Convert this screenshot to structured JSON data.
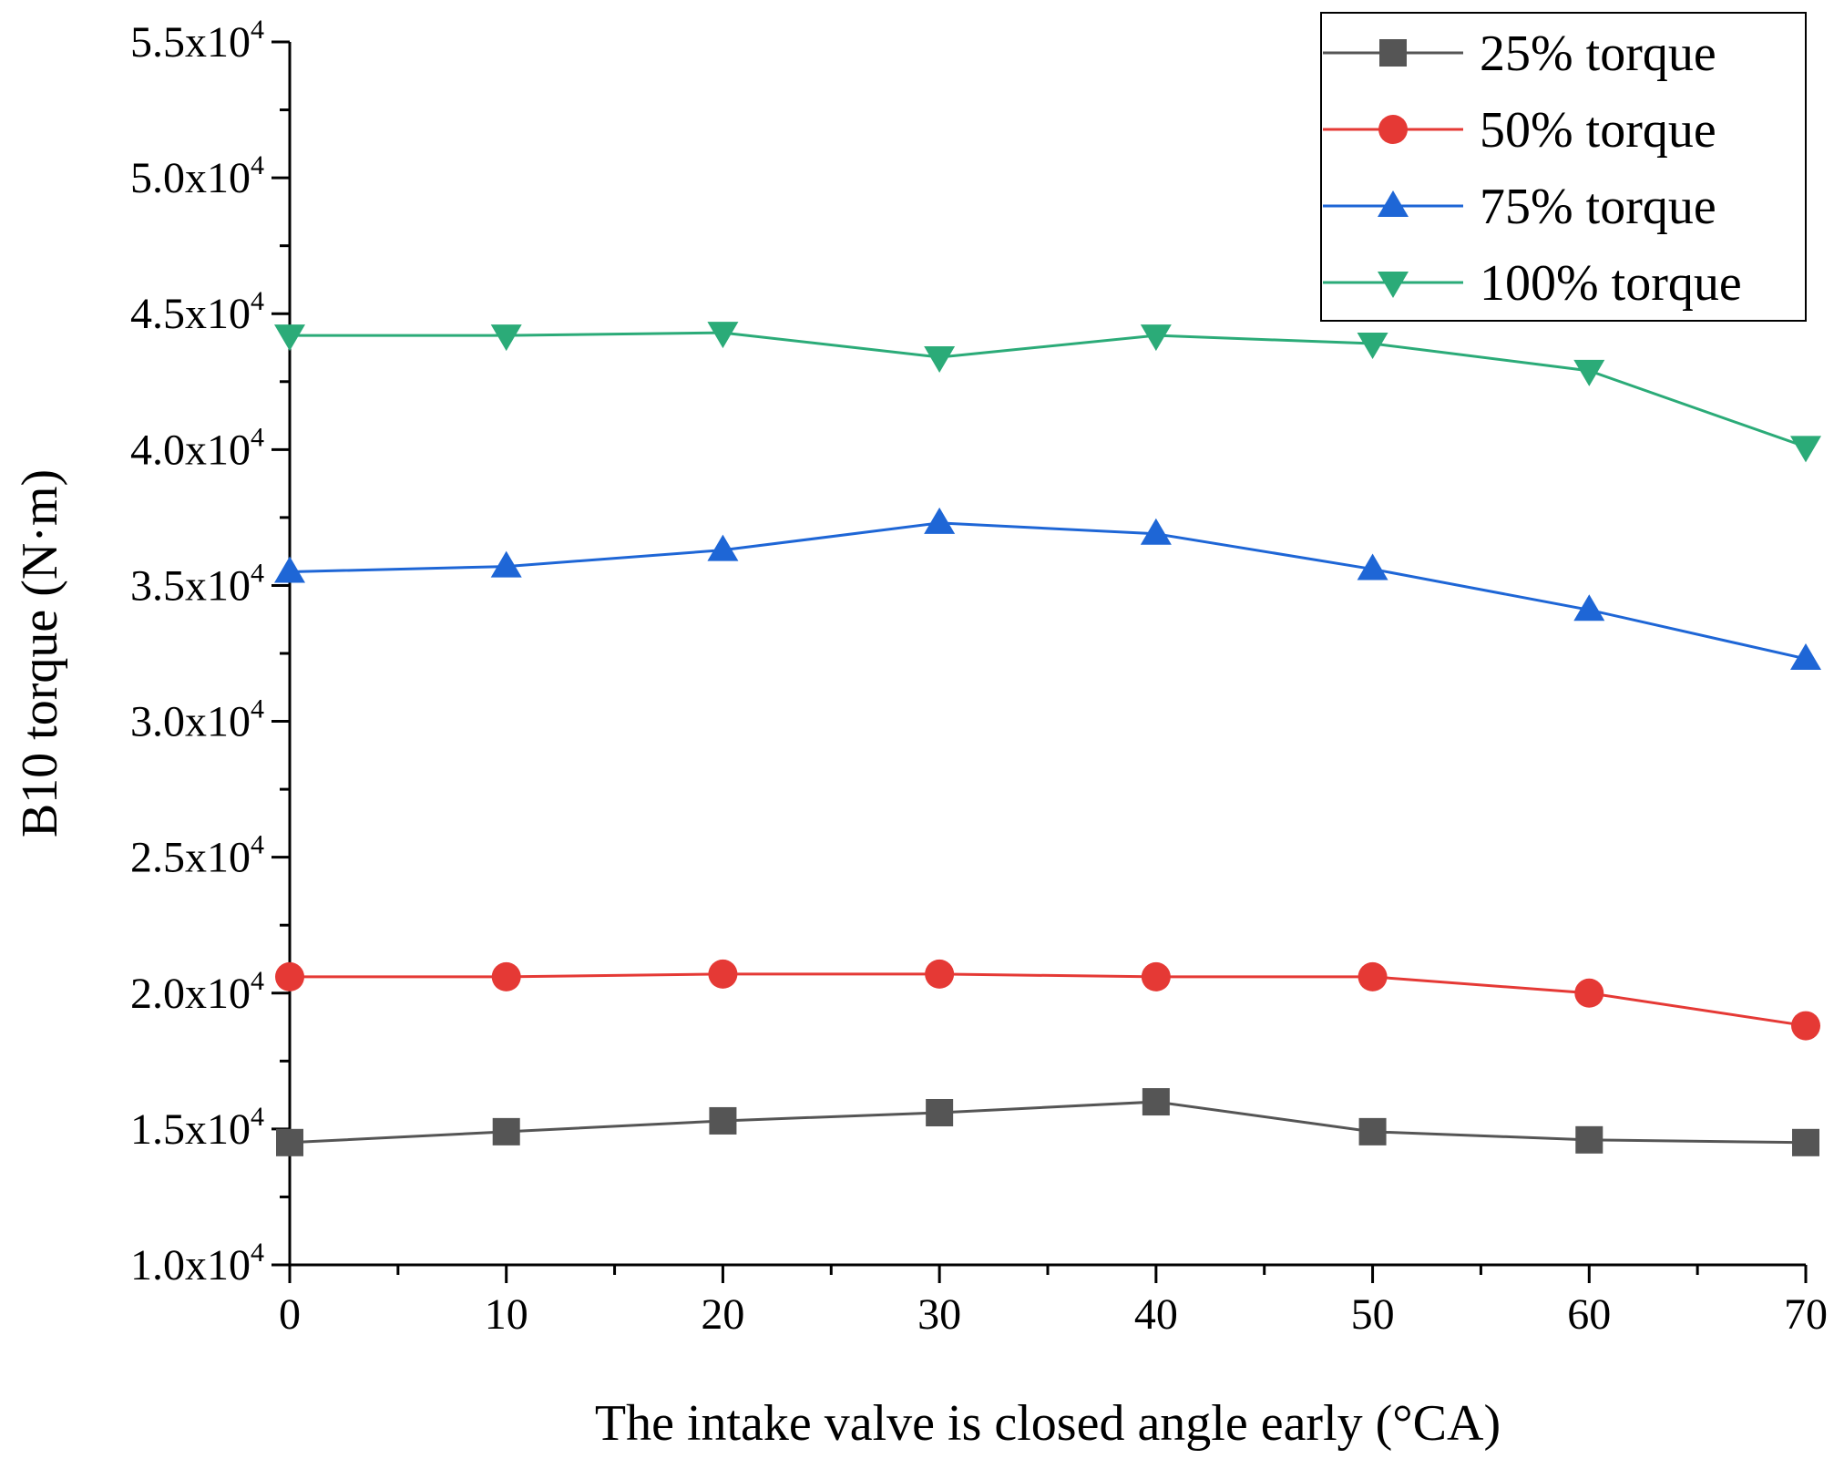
{
  "chart_data": {
    "type": "line",
    "title": "",
    "xlabel": "The intake valve is closed angle early (°CA)",
    "ylabel": "B10 torque (N·m)",
    "xlim": [
      0,
      70
    ],
    "ylim": [
      10000,
      55000
    ],
    "x": [
      0,
      10,
      20,
      30,
      40,
      50,
      60,
      70
    ],
    "xticks": [
      0,
      10,
      20,
      30,
      40,
      50,
      60,
      70
    ],
    "yticks": [
      10000,
      15000,
      20000,
      25000,
      30000,
      35000,
      40000,
      45000,
      50000,
      55000
    ],
    "ytick_labels": [
      {
        "mantissa": "1.0x10",
        "exp": "4"
      },
      {
        "mantissa": "1.5x10",
        "exp": "4"
      },
      {
        "mantissa": "2.0x10",
        "exp": "4"
      },
      {
        "mantissa": "2.5x10",
        "exp": "4"
      },
      {
        "mantissa": "3.0x10",
        "exp": "4"
      },
      {
        "mantissa": "3.5x10",
        "exp": "4"
      },
      {
        "mantissa": "4.0x10",
        "exp": "4"
      },
      {
        "mantissa": "4.5x10",
        "exp": "4"
      },
      {
        "mantissa": "5.0x10",
        "exp": "4"
      },
      {
        "mantissa": "5.5x10",
        "exp": "4"
      }
    ],
    "grid": false,
    "legend_position": "top-right",
    "series": [
      {
        "name": "25% torque",
        "color": "#555555",
        "marker": "square",
        "values": [
          14500,
          14900,
          15300,
          15600,
          16000,
          14900,
          14600,
          14500
        ]
      },
      {
        "name": "50% torque",
        "color": "#e53935",
        "marker": "circle",
        "values": [
          20600,
          20600,
          20700,
          20700,
          20600,
          20600,
          20000,
          18800
        ]
      },
      {
        "name": "75% torque",
        "color": "#1e66d6",
        "marker": "triangle-up",
        "values": [
          35500,
          35700,
          36300,
          37300,
          36900,
          35600,
          34100,
          32300
        ]
      },
      {
        "name": "100% torque",
        "color": "#2bab78",
        "marker": "triangle-down",
        "values": [
          44200,
          44200,
          44300,
          43400,
          44200,
          43900,
          42900,
          40100
        ]
      }
    ]
  }
}
